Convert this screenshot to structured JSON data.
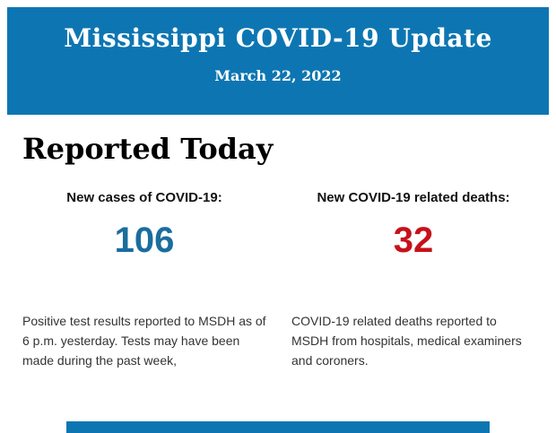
{
  "colors": {
    "banner_blue": "#0d76b2",
    "cases_blue": "#1a6d9e",
    "deaths_red": "#c6111b"
  },
  "header": {
    "title": "Mississippi COVID-19 Update",
    "date": "March 22, 2022"
  },
  "section": {
    "title": "Reported Today"
  },
  "stats": [
    {
      "label": "New cases of COVID-19:",
      "value": "106",
      "description": "Positive test results reported to MSDH as of 6 p.m. yesterday. Tests may have been made during the past week,"
    },
    {
      "label": "New COVID-19 related deaths:",
      "value": "32",
      "description": "COVID-19 related deaths reported to MSDH from hospitals, medical examiners and coroners."
    }
  ]
}
